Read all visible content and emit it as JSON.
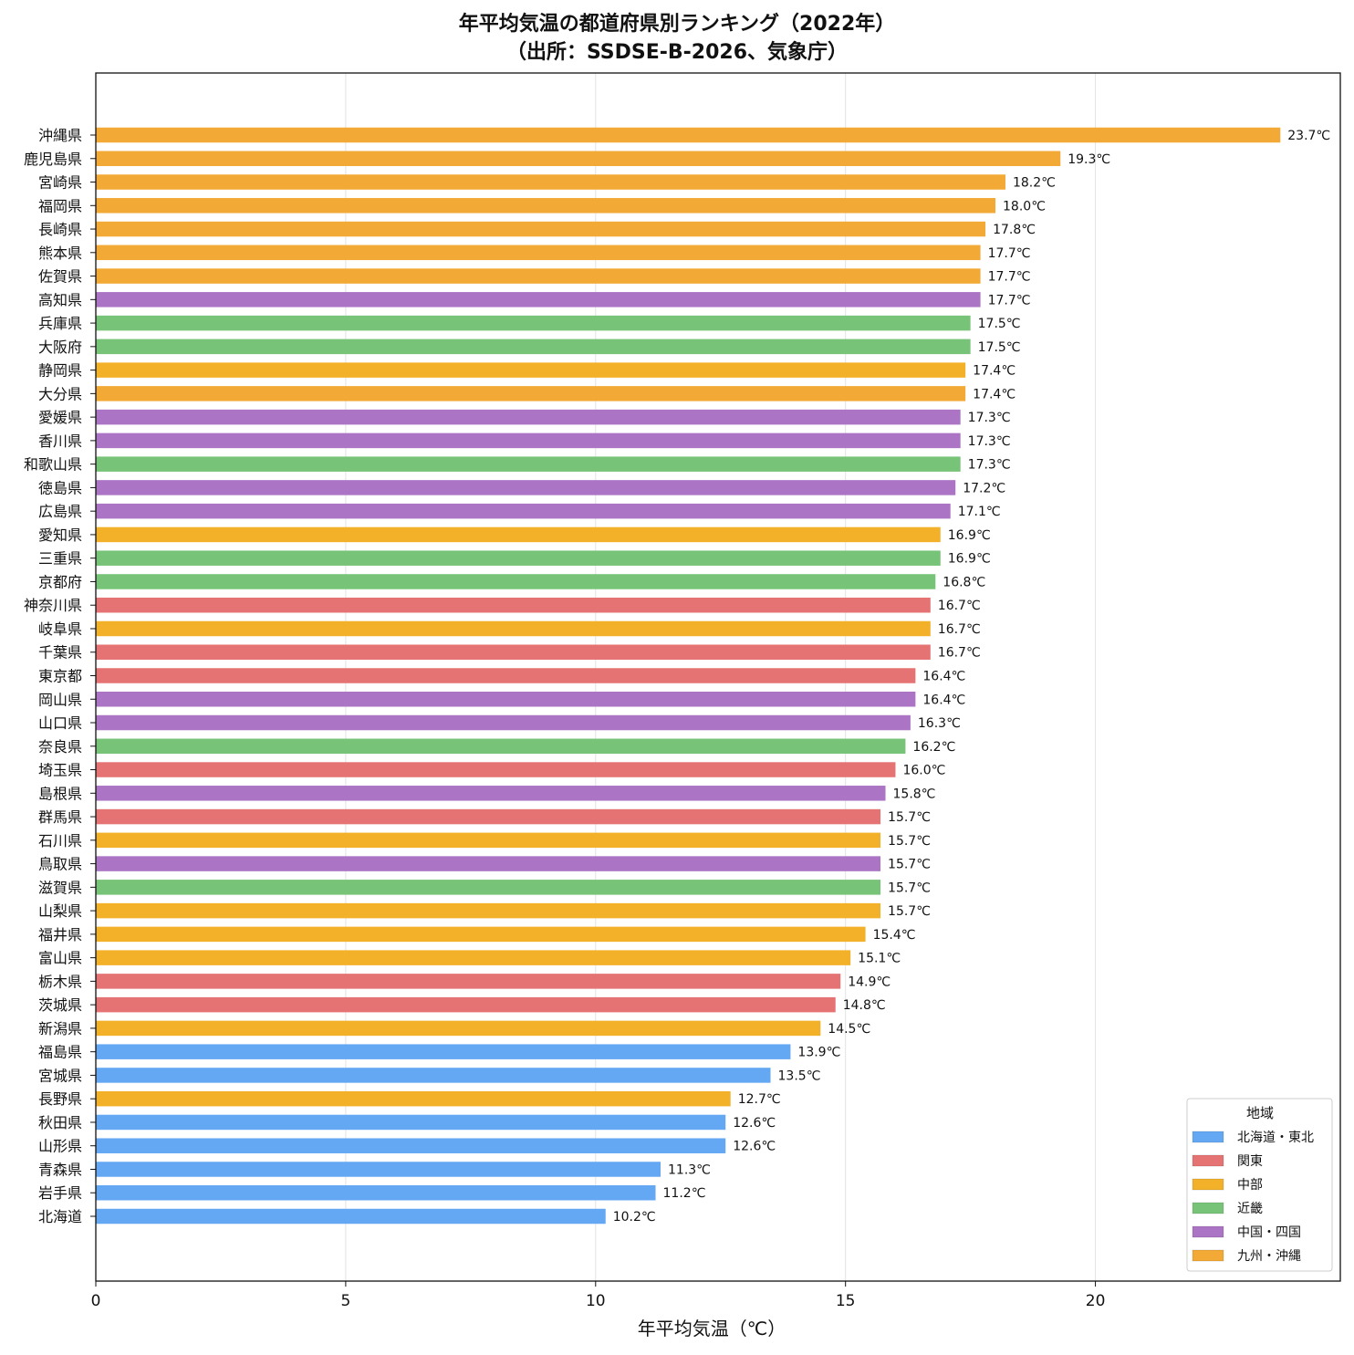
{
  "chart_data": {
    "type": "bar",
    "orientation": "horizontal",
    "title": "年平均気温の都道府県別ランキング（2022年）",
    "subtitle": "（出所：SSDSE-B-2026、気象庁）",
    "xlabel": "年平均気温（℃）",
    "ylabel": "",
    "xlim": [
      0,
      24.9
    ],
    "xticks": [
      0,
      5,
      10,
      15,
      20
    ],
    "grid": "x",
    "value_suffix": "℃",
    "legend": {
      "title": "地域",
      "position": "bottom-right",
      "entries": [
        {
          "name": "北海道・東北",
          "color": "#64a8f4"
        },
        {
          "name": "関東",
          "color": "#e57373"
        },
        {
          "name": "中部",
          "color": "#f2b129"
        },
        {
          "name": "近畿",
          "color": "#77c377"
        },
        {
          "name": "中国・四国",
          "color": "#ab74c4"
        },
        {
          "name": "九州・沖縄",
          "color": "#f3a935"
        }
      ]
    },
    "data": [
      {
        "label": "沖縄県",
        "value": 23.7,
        "region": "九州・沖縄"
      },
      {
        "label": "鹿児島県",
        "value": 19.3,
        "region": "九州・沖縄"
      },
      {
        "label": "宮崎県",
        "value": 18.2,
        "region": "九州・沖縄"
      },
      {
        "label": "福岡県",
        "value": 18.0,
        "region": "九州・沖縄"
      },
      {
        "label": "長崎県",
        "value": 17.8,
        "region": "九州・沖縄"
      },
      {
        "label": "熊本県",
        "value": 17.7,
        "region": "九州・沖縄"
      },
      {
        "label": "佐賀県",
        "value": 17.7,
        "region": "九州・沖縄"
      },
      {
        "label": "高知県",
        "value": 17.7,
        "region": "中国・四国"
      },
      {
        "label": "兵庫県",
        "value": 17.5,
        "region": "近畿"
      },
      {
        "label": "大阪府",
        "value": 17.5,
        "region": "近畿"
      },
      {
        "label": "静岡県",
        "value": 17.4,
        "region": "中部"
      },
      {
        "label": "大分県",
        "value": 17.4,
        "region": "九州・沖縄"
      },
      {
        "label": "愛媛県",
        "value": 17.3,
        "region": "中国・四国"
      },
      {
        "label": "香川県",
        "value": 17.3,
        "region": "中国・四国"
      },
      {
        "label": "和歌山県",
        "value": 17.3,
        "region": "近畿"
      },
      {
        "label": "徳島県",
        "value": 17.2,
        "region": "中国・四国"
      },
      {
        "label": "広島県",
        "value": 17.1,
        "region": "中国・四国"
      },
      {
        "label": "愛知県",
        "value": 16.9,
        "region": "中部"
      },
      {
        "label": "三重県",
        "value": 16.9,
        "region": "近畿"
      },
      {
        "label": "京都府",
        "value": 16.8,
        "region": "近畿"
      },
      {
        "label": "神奈川県",
        "value": 16.7,
        "region": "関東"
      },
      {
        "label": "岐阜県",
        "value": 16.7,
        "region": "中部"
      },
      {
        "label": "千葉県",
        "value": 16.7,
        "region": "関東"
      },
      {
        "label": "東京都",
        "value": 16.4,
        "region": "関東"
      },
      {
        "label": "岡山県",
        "value": 16.4,
        "region": "中国・四国"
      },
      {
        "label": "山口県",
        "value": 16.3,
        "region": "中国・四国"
      },
      {
        "label": "奈良県",
        "value": 16.2,
        "region": "近畿"
      },
      {
        "label": "埼玉県",
        "value": 16.0,
        "region": "関東"
      },
      {
        "label": "島根県",
        "value": 15.8,
        "region": "中国・四国"
      },
      {
        "label": "群馬県",
        "value": 15.7,
        "region": "関東"
      },
      {
        "label": "石川県",
        "value": 15.7,
        "region": "中部"
      },
      {
        "label": "鳥取県",
        "value": 15.7,
        "region": "中国・四国"
      },
      {
        "label": "滋賀県",
        "value": 15.7,
        "region": "近畿"
      },
      {
        "label": "山梨県",
        "value": 15.7,
        "region": "中部"
      },
      {
        "label": "福井県",
        "value": 15.4,
        "region": "中部"
      },
      {
        "label": "富山県",
        "value": 15.1,
        "region": "中部"
      },
      {
        "label": "栃木県",
        "value": 14.9,
        "region": "関東"
      },
      {
        "label": "茨城県",
        "value": 14.8,
        "region": "関東"
      },
      {
        "label": "新潟県",
        "value": 14.5,
        "region": "中部"
      },
      {
        "label": "福島県",
        "value": 13.9,
        "region": "北海道・東北"
      },
      {
        "label": "宮城県",
        "value": 13.5,
        "region": "北海道・東北"
      },
      {
        "label": "長野県",
        "value": 12.7,
        "region": "中部"
      },
      {
        "label": "秋田県",
        "value": 12.6,
        "region": "北海道・東北"
      },
      {
        "label": "山形県",
        "value": 12.6,
        "region": "北海道・東北"
      },
      {
        "label": "青森県",
        "value": 11.3,
        "region": "北海道・東北"
      },
      {
        "label": "岩手県",
        "value": 11.2,
        "region": "北海道・東北"
      },
      {
        "label": "北海道",
        "value": 10.2,
        "region": "北海道・東北"
      }
    ]
  }
}
